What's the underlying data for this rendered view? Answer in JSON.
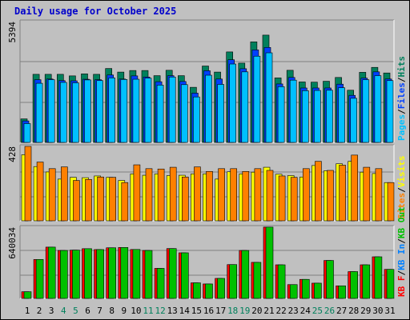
{
  "title": "Daily usage for October 2025",
  "days": [
    "1",
    "2",
    "3",
    "4",
    "5",
    "6",
    "7",
    "8",
    "9",
    "10",
    "11",
    "12",
    "13",
    "14",
    "15",
    "16",
    "17",
    "18",
    "19",
    "20",
    "21",
    "22",
    "23",
    "24",
    "25",
    "26",
    "27",
    "28",
    "29",
    "30",
    "31"
  ],
  "weekend_days": [
    "4",
    "5",
    "11",
    "12",
    "18",
    "19",
    "25",
    "26"
  ],
  "colors": {
    "hits": "#00805c",
    "files": "#0040ff",
    "pages": "#00c0ff",
    "visits": "#ffff00",
    "sites": "#ff8000",
    "kb_f": "#ff0000",
    "kb_in": "#0080ff",
    "kb_out": "#00c000",
    "weekday_label": "#000000",
    "weekend_label": "#00805c"
  },
  "chart_data": [
    {
      "type": "bar",
      "title": "Daily usage for October 2025",
      "ylabel_top": "5394",
      "legend": [
        "Pages",
        "Files",
        "Hits"
      ],
      "ylim": [
        0,
        5394
      ],
      "categories": [
        "1",
        "2",
        "3",
        "4",
        "5",
        "6",
        "7",
        "8",
        "9",
        "10",
        "11",
        "12",
        "13",
        "14",
        "15",
        "16",
        "17",
        "18",
        "19",
        "20",
        "21",
        "22",
        "23",
        "24",
        "25",
        "26",
        "27",
        "28",
        "29",
        "30",
        "31"
      ],
      "series": [
        {
          "name": "Hits",
          "values": [
            1050,
            3040,
            3040,
            3040,
            2970,
            3060,
            3040,
            3300,
            3140,
            3210,
            3210,
            2980,
            3220,
            2980,
            2460,
            3410,
            3140,
            4040,
            3540,
            4490,
            4790,
            2880,
            3220,
            2700,
            2690,
            2730,
            2900,
            2330,
            3130,
            3350,
            3100
          ]
        },
        {
          "name": "Files",
          "values": [
            960,
            2800,
            2830,
            2760,
            2750,
            2820,
            2800,
            3010,
            2830,
            2970,
            2920,
            2710,
            2980,
            2720,
            2200,
            3200,
            2830,
            3690,
            3290,
            4130,
            4240,
            2610,
            2900,
            2430,
            2430,
            2430,
            2600,
            2100,
            2870,
            3150,
            2830
          ]
        },
        {
          "name": "Pages",
          "values": [
            840,
            2640,
            2800,
            2680,
            2660,
            2790,
            2760,
            2880,
            2810,
            2820,
            2870,
            2560,
            2920,
            2580,
            2030,
            3000,
            2590,
            3500,
            3150,
            3850,
            4000,
            2490,
            2780,
            2310,
            2320,
            2330,
            2440,
            1970,
            2800,
            2980,
            2760
          ]
        }
      ]
    },
    {
      "type": "bar",
      "ylabel_top": "428",
      "legend": [
        "Sites",
        "Visits"
      ],
      "ylim": [
        0,
        428
      ],
      "categories": [
        "1",
        "2",
        "3",
        "4",
        "5",
        "6",
        "7",
        "8",
        "9",
        "10",
        "11",
        "12",
        "13",
        "14",
        "15",
        "16",
        "17",
        "18",
        "19",
        "20",
        "21",
        "22",
        "23",
        "24",
        "25",
        "26",
        "27",
        "28",
        "29",
        "30",
        "31"
      ],
      "series": [
        {
          "name": "Visits",
          "values": [
            380,
            312,
            281,
            240,
            250,
            248,
            258,
            250,
            232,
            270,
            262,
            270,
            260,
            262,
            270,
            270,
            240,
            282,
            270,
            280,
            308,
            268,
            260,
            252,
            318,
            288,
            328,
            342,
            280,
            272,
            220
          ]
        },
        {
          "name": "Sites",
          "values": [
            428,
            338,
            300,
            310,
            232,
            238,
            252,
            250,
            220,
            322,
            300,
            298,
            308,
            252,
            310,
            284,
            300,
            300,
            284,
            300,
            290,
            258,
            250,
            300,
            342,
            290,
            320,
            378,
            308,
            300,
            220
          ]
        }
      ]
    },
    {
      "type": "bar",
      "ylabel_top": "640034",
      "legend": [
        "KB F",
        "KB In",
        "KB Out"
      ],
      "ylim": [
        0,
        640034
      ],
      "categories": [
        "1",
        "2",
        "3",
        "4",
        "5",
        "6",
        "7",
        "8",
        "9",
        "10",
        "11",
        "12",
        "13",
        "14",
        "15",
        "16",
        "17",
        "18",
        "19",
        "20",
        "21",
        "22",
        "23",
        "24",
        "25",
        "26",
        "27",
        "28",
        "29",
        "30",
        "31"
      ],
      "series": [
        {
          "name": "KB F",
          "values": [
            60000,
            350000,
            461000,
            431000,
            434000,
            447000,
            439000,
            455000,
            458000,
            440000,
            431000,
            270000,
            448000,
            410000,
            140000,
            130000,
            180000,
            304000,
            431000,
            324000,
            641000,
            302000,
            124000,
            171000,
            137000,
            341000,
            113000,
            241000,
            302000,
            374000,
            261000
          ]
        },
        {
          "name": "KB Out",
          "values": [
            60000,
            350000,
            461000,
            431000,
            434000,
            447000,
            439000,
            455000,
            458000,
            440000,
            431000,
            270000,
            448000,
            410000,
            140000,
            130000,
            180000,
            304000,
            431000,
            324000,
            641000,
            302000,
            124000,
            171000,
            137000,
            341000,
            113000,
            241000,
            302000,
            374000,
            261000
          ]
        }
      ]
    }
  ]
}
